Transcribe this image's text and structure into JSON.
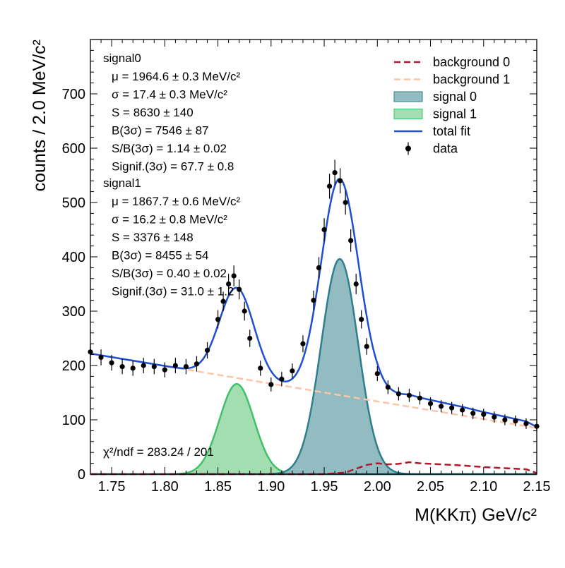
{
  "chart_data": {
    "type": "scatter",
    "xlabel": "M(KKπ) GeV/c²",
    "ylabel": "counts / 2.0 MeV/c²",
    "xlim": [
      1.73,
      2.15
    ],
    "ylim": [
      0,
      800
    ],
    "x_ticks": [
      "1.75",
      "1.80",
      "1.85",
      "1.90",
      "1.95",
      "2.00",
      "2.05",
      "2.10",
      "2.15"
    ],
    "y_ticks": [
      "0",
      "100",
      "200",
      "300",
      "400",
      "500",
      "600",
      "700"
    ],
    "bin_width": 0.002,
    "legend": {
      "placement": "top-right",
      "entries": [
        {
          "label": "background 0",
          "color": "#b2182b",
          "style": "dashed"
        },
        {
          "label": "background 1",
          "color": "#fcc5a8",
          "style": "dashed"
        },
        {
          "label": "signal 0",
          "color": "#2e7f8c",
          "style": "fill"
        },
        {
          "label": "signal 1",
          "color": "#41c06b",
          "style": "fill"
        },
        {
          "label": "total fit",
          "color": "#1f4fd1",
          "style": "line"
        },
        {
          "label": "data",
          "color": "#000000",
          "style": "errorbar"
        }
      ]
    },
    "fit_info": [
      {
        "name": "signal0",
        "lines": [
          "μ = 1964.6 ± 0.3 MeV/c²",
          "σ = 17.4 ± 0.3 MeV/c²",
          "S = 8630 ± 140",
          "B(3σ) = 7546 ± 87",
          "S/B(3σ) = 1.14 ± 0.02",
          "Signif.(3σ) = 67.7 ± 0.8"
        ]
      },
      {
        "name": "signal1",
        "lines": [
          "μ = 1867.7 ± 0.6 MeV/c²",
          "σ = 16.2 ± 0.8 MeV/c²",
          "S = 3376 ± 148",
          "B(3σ) = 8455 ± 54",
          "S/B(3σ) = 0.40 ± 0.02",
          "Signif.(3σ) = 31.0 ± 1.2"
        ]
      }
    ],
    "chi2": "χ²/ndf = 283.24 / 201",
    "components": {
      "signal0": {
        "mean": 1.9646,
        "sigma": 0.0174,
        "peak": 396
      },
      "signal1": {
        "mean": 1.8677,
        "sigma": 0.0162,
        "peak": 166
      },
      "background1": {
        "x": [
          1.73,
          2.15
        ],
        "y": [
          222,
          85
        ]
      },
      "background0": {
        "x": [
          1.95,
          1.97,
          1.98,
          1.99,
          2.0,
          2.01,
          2.02,
          2.03,
          2.04,
          2.06,
          2.08,
          2.1,
          2.12,
          2.14,
          2.15
        ],
        "y": [
          0,
          3,
          10,
          17,
          20,
          18,
          19,
          22,
          20,
          18,
          16,
          13,
          11,
          9,
          2
        ]
      }
    },
    "series": [
      {
        "name": "data",
        "x": [
          1.73,
          1.74,
          1.75,
          1.76,
          1.77,
          1.78,
          1.79,
          1.8,
          1.81,
          1.82,
          1.83,
          1.84,
          1.85,
          1.855,
          1.86,
          1.865,
          1.87,
          1.875,
          1.88,
          1.89,
          1.9,
          1.91,
          1.92,
          1.93,
          1.94,
          1.945,
          1.95,
          1.955,
          1.96,
          1.965,
          1.97,
          1.975,
          1.98,
          1.985,
          1.99,
          2.0,
          2.01,
          2.02,
          2.03,
          2.04,
          2.05,
          2.06,
          2.07,
          2.08,
          2.09,
          2.1,
          2.11,
          2.12,
          2.13,
          2.14,
          2.15
        ],
        "y": [
          225,
          215,
          205,
          198,
          195,
          200,
          198,
          192,
          200,
          198,
          203,
          228,
          285,
          318,
          350,
          365,
          340,
          300,
          250,
          195,
          165,
          175,
          190,
          240,
          320,
          380,
          450,
          530,
          555,
          540,
          500,
          430,
          350,
          285,
          235,
          185,
          160,
          148,
          145,
          140,
          130,
          125,
          122,
          118,
          112,
          110,
          105,
          100,
          98,
          93,
          88
        ]
      }
    ]
  }
}
